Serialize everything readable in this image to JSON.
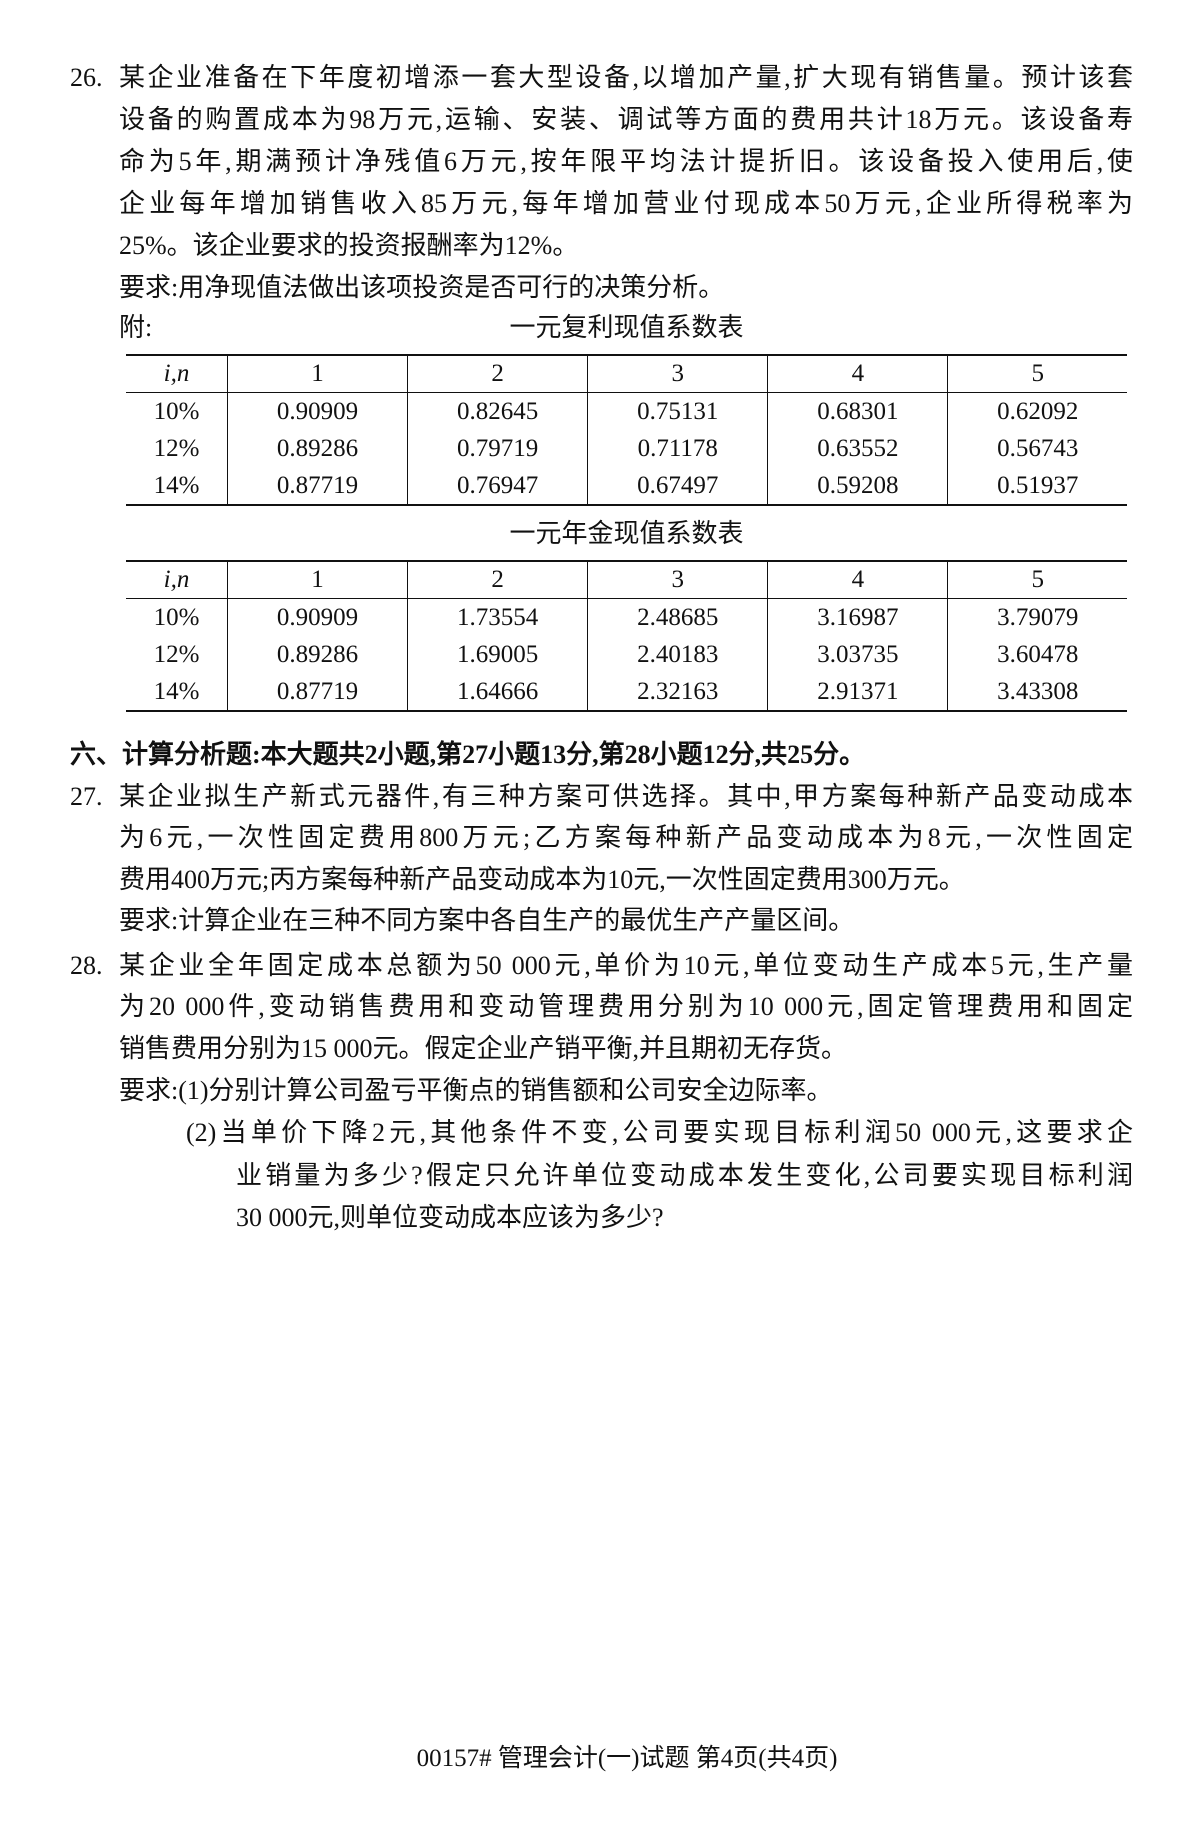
{
  "q26": {
    "number": "26.",
    "lines": [
      "某企业准备在下年度初增添一套大型设备,以增加产量,扩大现有销售量。预计该套",
      "设备的购置成本为98万元,运输、安装、调试等方面的费用共计18万元。该设备寿",
      "命为5年,期满预计净残值6万元,按年限平均法计提折旧。该设备投入使用后,使",
      "企业每年增加销售收入85万元,每年增加营业付现成本50万元,企业所得税率为",
      "25%。该企业要求的投资报酬率为12%。"
    ],
    "requirement": "要求:用净现值法做出该项投资是否可行的决策分析。",
    "appendix_label": "附:"
  },
  "tables": [
    {
      "title": "一元复利现值系数表",
      "header": [
        "i,n",
        "1",
        "2",
        "3",
        "4",
        "5"
      ],
      "rows": [
        [
          "10%",
          "0.90909",
          "0.82645",
          "0.75131",
          "0.68301",
          "0.62092"
        ],
        [
          "12%",
          "0.89286",
          "0.79719",
          "0.71178",
          "0.63552",
          "0.56743"
        ],
        [
          "14%",
          "0.87719",
          "0.76947",
          "0.67497",
          "0.59208",
          "0.51937"
        ]
      ]
    },
    {
      "title": "一元年金现值系数表",
      "header": [
        "i,n",
        "1",
        "2",
        "3",
        "4",
        "5"
      ],
      "rows": [
        [
          "10%",
          "0.90909",
          "1.73554",
          "2.48685",
          "3.16987",
          "3.79079"
        ],
        [
          "12%",
          "0.89286",
          "1.69005",
          "2.40183",
          "3.03735",
          "3.60478"
        ],
        [
          "14%",
          "0.87719",
          "1.64666",
          "2.32163",
          "2.91371",
          "3.43308"
        ]
      ]
    }
  ],
  "section6": {
    "heading": "六、计算分析题:本大题共2小题,第27小题13分,第28小题12分,共25分。"
  },
  "q27": {
    "number": "27.",
    "lines": [
      "某企业拟生产新式元器件,有三种方案可供选择。其中,甲方案每种新产品变动成本",
      "为6元,一次性固定费用800万元;乙方案每种新产品变动成本为8元,一次性固定",
      "费用400万元;丙方案每种新产品变动成本为10元,一次性固定费用300万元。",
      "要求:计算企业在三种不同方案中各自生产的最优生产产量区间。"
    ]
  },
  "q28": {
    "number": "28.",
    "lines": [
      "某企业全年固定成本总额为50 000元,单价为10元,单位变动生产成本5元,生产量",
      "为20 000件,变动销售费用和变动管理费用分别为10 000元,固定管理费用和固定",
      "销售费用分别为15 000元。假定企业产销平衡,并且期初无存货。",
      "要求:(1)分别计算公司盈亏平衡点的销售额和公司安全边际率。",
      "(2)当单价下降2元,其他条件不变,公司要实现目标利润50 000元,这要求企",
      "业销量为多少?假定只允许单位变动成本发生变化,公司要实现目标利润",
      "30 000元,则单位变动成本应该为多少?"
    ]
  },
  "footer": "00157# 管理会计(一)试题 第4页(共4页)"
}
